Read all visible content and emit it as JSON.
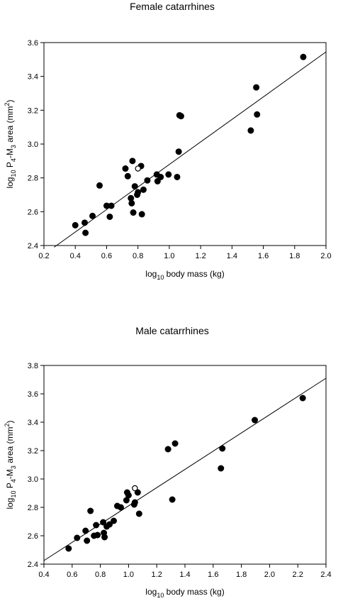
{
  "chart_data": [
    {
      "type": "scatter",
      "title": "Female catarrhines",
      "xlabel": {
        "base": "log",
        "sub": "10",
        "rest": " body mass (kg)"
      },
      "ylabel": {
        "base": "log",
        "sub1": "10",
        "mid1": " P",
        "sub2": "4",
        "mid2": "-M",
        "sub3": "3",
        "mid3": " area (mm",
        "sup": "2",
        "end": ")"
      },
      "xlim": [
        0.2,
        2.0
      ],
      "ylim": [
        2.4,
        3.6
      ],
      "xticks": [
        "0.2",
        "0.4",
        "0.6",
        "0.8",
        "1.0",
        "1.2",
        "1.4",
        "1.6",
        "1.8",
        "2.0"
      ],
      "yticks": [
        "2.4",
        "2.6",
        "2.8",
        "3.0",
        "3.2",
        "3.4",
        "3.6"
      ],
      "fit_line": {
        "x": [
          0.265,
          2.0
        ],
        "y": [
          2.39,
          3.545
        ]
      },
      "points": [
        {
          "x": 0.4,
          "y": 2.52
        },
        {
          "x": 0.46,
          "y": 2.535
        },
        {
          "x": 0.465,
          "y": 2.475
        },
        {
          "x": 0.51,
          "y": 2.575
        },
        {
          "x": 0.555,
          "y": 2.755
        },
        {
          "x": 0.6,
          "y": 2.635
        },
        {
          "x": 0.62,
          "y": 2.57
        },
        {
          "x": 0.63,
          "y": 2.635
        },
        {
          "x": 0.72,
          "y": 2.855
        },
        {
          "x": 0.735,
          "y": 2.81
        },
        {
          "x": 0.755,
          "y": 2.68
        },
        {
          "x": 0.76,
          "y": 2.65
        },
        {
          "x": 0.765,
          "y": 2.9
        },
        {
          "x": 0.77,
          "y": 2.595
        },
        {
          "x": 0.78,
          "y": 2.75
        },
        {
          "x": 0.795,
          "y": 2.7
        },
        {
          "x": 0.8,
          "y": 2.715
        },
        {
          "x": 0.82,
          "y": 2.87
        },
        {
          "x": 0.825,
          "y": 2.585
        },
        {
          "x": 0.835,
          "y": 2.73
        },
        {
          "x": 0.86,
          "y": 2.785
        },
        {
          "x": 0.92,
          "y": 2.82
        },
        {
          "x": 0.925,
          "y": 2.78
        },
        {
          "x": 0.945,
          "y": 2.805
        },
        {
          "x": 0.995,
          "y": 2.82
        },
        {
          "x": 1.05,
          "y": 2.805
        },
        {
          "x": 1.06,
          "y": 2.955
        },
        {
          "x": 1.065,
          "y": 3.17
        },
        {
          "x": 1.075,
          "y": 3.165
        },
        {
          "x": 1.52,
          "y": 3.08
        },
        {
          "x": 1.555,
          "y": 3.335
        },
        {
          "x": 1.56,
          "y": 3.175
        },
        {
          "x": 1.855,
          "y": 3.515
        }
      ],
      "open_points": [
        {
          "x": 0.8,
          "y": 2.855
        }
      ]
    },
    {
      "type": "scatter",
      "title": "Male catarrhines",
      "xlabel": {
        "base": "log",
        "sub": "10",
        "rest": " body mass (kg)"
      },
      "ylabel": {
        "base": "log",
        "sub1": "10",
        "mid1": " P",
        "sub2": "4",
        "mid2": "-M",
        "sub3": "3",
        "mid3": " area (mm",
        "sup": "2",
        "end": ")"
      },
      "xlim": [
        0.4,
        2.4
      ],
      "ylim": [
        2.4,
        3.8
      ],
      "xticks": [
        "0.4",
        "0.6",
        "0.8",
        "1.0",
        "1.2",
        "1.4",
        "1.6",
        "1.8",
        "2.0",
        "2.2",
        "2.4"
      ],
      "yticks": [
        "2.4",
        "2.6",
        "2.8",
        "3.0",
        "3.2",
        "3.4",
        "3.6",
        "3.8"
      ],
      "fit_line": {
        "x": [
          0.4,
          2.4
        ],
        "y": [
          2.425,
          3.71
        ]
      },
      "points": [
        {
          "x": 0.575,
          "y": 2.51
        },
        {
          "x": 0.635,
          "y": 2.585
        },
        {
          "x": 0.695,
          "y": 2.635
        },
        {
          "x": 0.705,
          "y": 2.565
        },
        {
          "x": 0.73,
          "y": 2.775
        },
        {
          "x": 0.755,
          "y": 2.6
        },
        {
          "x": 0.77,
          "y": 2.675
        },
        {
          "x": 0.78,
          "y": 2.605
        },
        {
          "x": 0.82,
          "y": 2.695
        },
        {
          "x": 0.825,
          "y": 2.62
        },
        {
          "x": 0.83,
          "y": 2.59
        },
        {
          "x": 0.845,
          "y": 2.665
        },
        {
          "x": 0.865,
          "y": 2.68
        },
        {
          "x": 0.895,
          "y": 2.705
        },
        {
          "x": 0.92,
          "y": 2.81
        },
        {
          "x": 0.945,
          "y": 2.8
        },
        {
          "x": 0.985,
          "y": 2.85
        },
        {
          "x": 0.99,
          "y": 2.905
        },
        {
          "x": 1.0,
          "y": 2.885
        },
        {
          "x": 1.04,
          "y": 2.82
        },
        {
          "x": 1.045,
          "y": 2.835
        },
        {
          "x": 1.065,
          "y": 2.905
        },
        {
          "x": 1.075,
          "y": 2.755
        },
        {
          "x": 1.28,
          "y": 3.21
        },
        {
          "x": 1.31,
          "y": 2.855
        },
        {
          "x": 1.33,
          "y": 3.25
        },
        {
          "x": 1.655,
          "y": 3.075
        },
        {
          "x": 1.665,
          "y": 3.215
        },
        {
          "x": 1.895,
          "y": 3.415
        },
        {
          "x": 2.235,
          "y": 3.57
        }
      ],
      "open_points": [
        {
          "x": 1.045,
          "y": 2.935
        }
      ]
    }
  ]
}
